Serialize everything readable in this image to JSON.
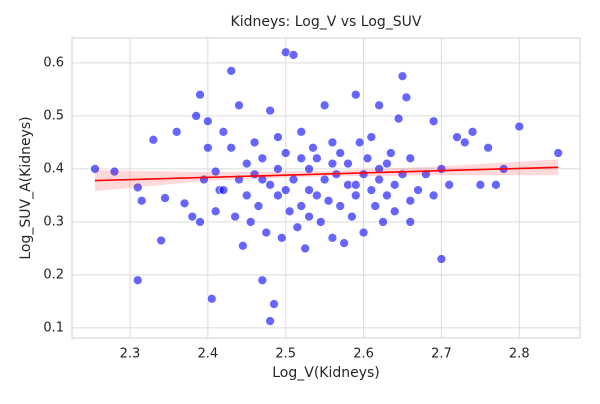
{
  "chart_data": {
    "type": "scatter",
    "title": "Kidneys: Log_V vs Log_SUV",
    "x_label": "Log_V(Kidneys)",
    "y_label": "Log_SUV_A(Kidneys)",
    "x": [
      2.255,
      2.28,
      2.31,
      2.31,
      2.315,
      2.33,
      2.34,
      2.345,
      2.36,
      2.37,
      2.38,
      2.385,
      2.39,
      2.39,
      2.395,
      2.4,
      2.4,
      2.405,
      2.41,
      2.41,
      2.415,
      2.42,
      2.42,
      2.43,
      2.43,
      2.435,
      2.44,
      2.44,
      2.445,
      2.45,
      2.45,
      2.455,
      2.46,
      2.46,
      2.465,
      2.47,
      2.47,
      2.475,
      2.48,
      2.48,
      2.48,
      2.485,
      2.49,
      2.49,
      2.49,
      2.495,
      2.5,
      2.5,
      2.5,
      2.505,
      2.51,
      2.51,
      2.515,
      2.52,
      2.52,
      2.52,
      2.525,
      2.53,
      2.53,
      2.535,
      2.54,
      2.54,
      2.545,
      2.55,
      2.55,
      2.555,
      2.56,
      2.56,
      2.565,
      2.57,
      2.57,
      2.575,
      2.58,
      2.58,
      2.585,
      2.59,
      2.59,
      2.595,
      2.6,
      2.6,
      2.605,
      2.61,
      2.61,
      2.615,
      2.62,
      2.62,
      2.625,
      2.63,
      2.63,
      2.635,
      2.64,
      2.64,
      2.645,
      2.65,
      2.65,
      2.655,
      2.66,
      2.66,
      2.67,
      2.68,
      2.69,
      2.69,
      2.7,
      2.7,
      2.71,
      2.72,
      2.73,
      2.74,
      2.75,
      2.76,
      2.77,
      2.78,
      2.8,
      2.85,
      2.47,
      2.53,
      2.56,
      2.59,
      2.62,
      2.66
    ],
    "series": [
      {
        "color": "#0000ff",
        "values": [
          0.4,
          0.395,
          0.19,
          0.365,
          0.34,
          0.455,
          0.265,
          0.345,
          0.47,
          0.335,
          0.31,
          0.5,
          0.54,
          0.3,
          0.38,
          0.44,
          0.49,
          0.155,
          0.32,
          0.395,
          0.36,
          0.36,
          0.47,
          0.585,
          0.44,
          0.31,
          0.52,
          0.38,
          0.255,
          0.41,
          0.35,
          0.3,
          0.45,
          0.39,
          0.33,
          0.19,
          0.42,
          0.28,
          0.113,
          0.37,
          0.51,
          0.145,
          0.46,
          0.35,
          0.4,
          0.27,
          0.62,
          0.43,
          0.36,
          0.32,
          0.615,
          0.38,
          0.29,
          0.47,
          0.33,
          0.42,
          0.25,
          0.4,
          0.36,
          0.44,
          0.35,
          0.42,
          0.3,
          0.52,
          0.38,
          0.34,
          0.45,
          0.27,
          0.39,
          0.33,
          0.43,
          0.26,
          0.37,
          0.41,
          0.31,
          0.54,
          0.35,
          0.45,
          0.39,
          0.28,
          0.42,
          0.36,
          0.46,
          0.33,
          0.52,
          0.38,
          0.3,
          0.41,
          0.35,
          0.43,
          0.37,
          0.32,
          0.495,
          0.575,
          0.39,
          0.535,
          0.34,
          0.42,
          0.36,
          0.39,
          0.49,
          0.35,
          0.23,
          0.4,
          0.37,
          0.46,
          0.45,
          0.47,
          0.37,
          0.44,
          0.37,
          0.4,
          0.48,
          0.43,
          0.38,
          0.31,
          0.41,
          0.37,
          0.4,
          0.3
        ]
      }
    ],
    "fit": {
      "color": "#ff0000",
      "x": [
        2.255,
        2.85
      ],
      "y": [
        0.378,
        0.403
      ],
      "ci_x": [
        2.255,
        2.4,
        2.55,
        2.7,
        2.85
      ],
      "ci_lower": [
        0.358,
        0.378,
        0.386,
        0.388,
        0.388
      ],
      "ci_upper": [
        0.398,
        0.394,
        0.396,
        0.405,
        0.418
      ]
    },
    "xlim": [
      2.2255,
      2.878
    ],
    "ylim": [
      0.081,
      0.647
    ],
    "xticks": [
      2.3,
      2.4,
      2.5,
      2.6,
      2.7,
      2.8
    ],
    "yticks": [
      0.1,
      0.2,
      0.3,
      0.4,
      0.5,
      0.6
    ],
    "grid": true
  }
}
